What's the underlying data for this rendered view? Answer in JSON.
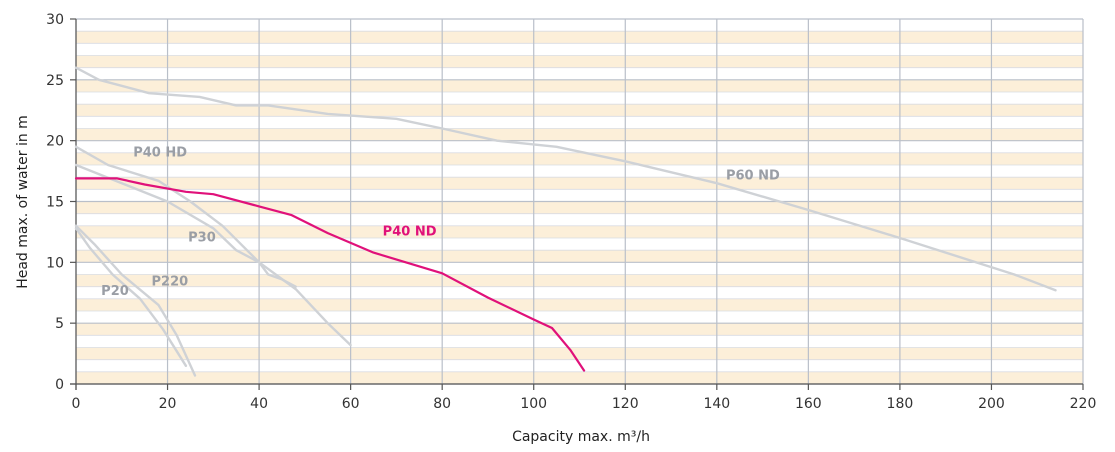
{
  "chart_data": {
    "type": "line",
    "xlabel": "Capacity max. m³/h",
    "ylabel": "Head max. of water in m",
    "xlim": [
      0,
      220
    ],
    "ylim": [
      0,
      30
    ],
    "x_ticks": [
      0,
      20,
      40,
      60,
      80,
      100,
      120,
      140,
      160,
      180,
      200,
      220
    ],
    "y_ticks": [
      0,
      5,
      10,
      15,
      20,
      25,
      30
    ],
    "grid": true,
    "colors": {
      "band": "#fcefd9",
      "grid_major": "#b9bfc9",
      "grid_minor": "#d9dce2",
      "other_curves": "#c9ccd1",
      "label_grey": "#9a9ea5",
      "highlight": "#e0117a"
    },
    "series": [
      {
        "name": "P60 ND",
        "color": "#cfd2d6",
        "x": [
          0,
          5,
          16,
          27,
          35,
          42,
          55,
          70,
          80,
          92,
          105,
          120,
          140,
          160,
          180,
          205,
          214
        ],
        "y": [
          26,
          25,
          23.9,
          23.6,
          22.9,
          22.9,
          22.2,
          21.8,
          21,
          20,
          19.5,
          18.3,
          16.5,
          14.3,
          12,
          9,
          7.7
        ]
      },
      {
        "name": "P40 HD",
        "color": "#cfd2d6",
        "x": [
          0,
          7,
          18,
          25,
          32,
          40,
          48,
          55,
          60
        ],
        "y": [
          19.5,
          18,
          16.7,
          15,
          13,
          10,
          7.8,
          5,
          3.2
        ]
      },
      {
        "name": "P30",
        "color": "#cfd2d6",
        "x": [
          0,
          10,
          20,
          30,
          35,
          40,
          42,
          45,
          48
        ],
        "y": [
          18,
          16.5,
          15,
          12.8,
          11,
          10,
          9,
          8.6,
          8
        ]
      },
      {
        "name": "P220",
        "color": "#cfd2d6",
        "x": [
          0,
          4,
          10,
          18,
          22,
          26
        ],
        "y": [
          13,
          11.5,
          9,
          6.5,
          4,
          0.7
        ]
      },
      {
        "name": "P20",
        "color": "#cfd2d6",
        "x": [
          0,
          3,
          8,
          14,
          19,
          24
        ],
        "y": [
          12.8,
          11.2,
          9,
          7,
          4.5,
          1.5
        ]
      },
      {
        "name": "P40 ND",
        "color": "#e0117a",
        "x": [
          0,
          9,
          15,
          24,
          30,
          40,
          47,
          55,
          65,
          80,
          90,
          100,
          104,
          108,
          111
        ],
        "y": [
          16.9,
          16.9,
          16.4,
          15.8,
          15.6,
          14.6,
          13.9,
          12.4,
          10.8,
          9.1,
          7.1,
          5.3,
          4.6,
          2.8,
          1.1
        ]
      }
    ],
    "labels": [
      {
        "text": "P40 HD",
        "x": 12.5,
        "y": 18.7,
        "color": "#9a9ea5"
      },
      {
        "text": "P30",
        "x": 24.5,
        "y": 11.7,
        "color": "#9a9ea5"
      },
      {
        "text": "P220",
        "x": 16.5,
        "y": 8.1,
        "color": "#9a9ea5"
      },
      {
        "text": "P20",
        "x": 5.5,
        "y": 7.3,
        "color": "#9a9ea5"
      },
      {
        "text": "P40 ND",
        "x": 67,
        "y": 12.2,
        "color": "#e0117a"
      },
      {
        "text": "P60 ND",
        "x": 142,
        "y": 16.8,
        "color": "#9a9ea5"
      }
    ]
  }
}
